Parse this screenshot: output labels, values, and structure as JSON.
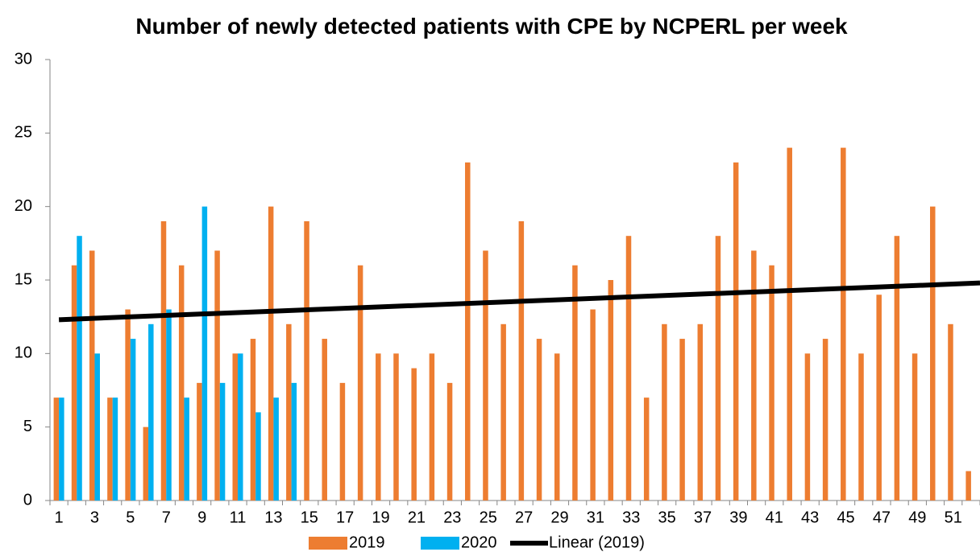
{
  "chart_data": {
    "type": "bar",
    "title": "Number of newly detected patients with CPE by NCPERL per week",
    "categories": [
      1,
      null,
      3,
      null,
      5,
      null,
      7,
      null,
      9,
      null,
      11,
      null,
      13,
      null,
      15,
      null,
      17,
      null,
      19,
      null,
      21,
      null,
      23,
      null,
      25,
      null,
      27,
      null,
      29,
      null,
      31,
      null,
      33,
      null,
      35,
      null,
      37,
      null,
      39,
      null,
      41,
      null,
      43,
      null,
      45,
      null,
      47,
      null,
      49,
      null,
      51,
      null
    ],
    "series": [
      {
        "name": "2019",
        "color": "#ED7D31",
        "values": [
          7,
          16,
          17,
          7,
          13,
          5,
          19,
          16,
          8,
          17,
          10,
          11,
          20,
          12,
          19,
          11,
          8,
          16,
          10,
          10,
          9,
          10,
          8,
          23,
          17,
          12,
          19,
          11,
          10,
          16,
          13,
          15,
          18,
          7,
          12,
          11,
          12,
          18,
          23,
          17,
          16,
          24,
          10,
          11,
          24,
          10,
          14,
          18,
          10,
          20,
          12,
          2
        ]
      },
      {
        "name": "2020",
        "color": "#00B0F0",
        "values": [
          7,
          18,
          10,
          7,
          11,
          12,
          13,
          7,
          20,
          8,
          10,
          6,
          7,
          8,
          null,
          null,
          null,
          null,
          null,
          null,
          null,
          null,
          null,
          null,
          null,
          null,
          null,
          null,
          null,
          null,
          null,
          null,
          null,
          null,
          null,
          null,
          null,
          null,
          null,
          null,
          null,
          null,
          null,
          null,
          null,
          null,
          null,
          null,
          null,
          null,
          null,
          null
        ]
      }
    ],
    "trendline": {
      "name": "Linear (2019)",
      "color": "#000000",
      "x": [
        1,
        52.5
      ],
      "values": [
        12.3,
        14.8
      ]
    },
    "ylim": [
      0,
      30
    ],
    "yticks": [
      0,
      5,
      10,
      15,
      20,
      25,
      30
    ],
    "grid": false
  }
}
